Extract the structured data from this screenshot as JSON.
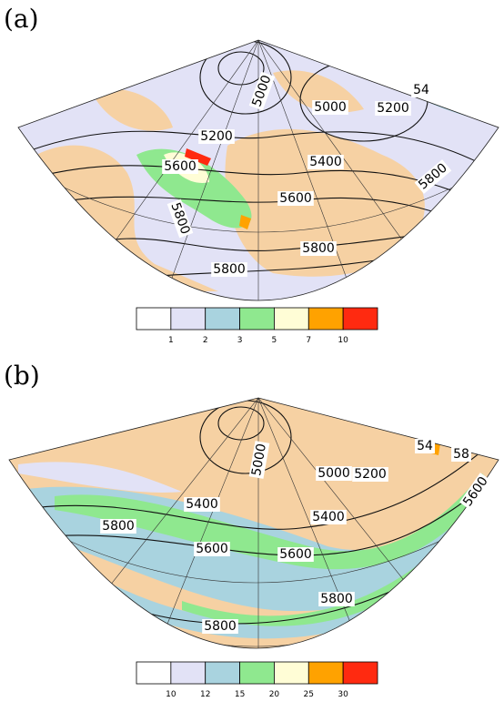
{
  "panels": [
    {
      "label": "(a)",
      "contour_labels": [
        "5000",
        "5000",
        "5200",
        "54",
        "5200",
        "5400",
        "5600",
        "5800",
        "5600",
        "5800",
        "5800",
        "5800"
      ],
      "colorbar": {
        "colors": [
          "#ffffff",
          "#e2e2f6",
          "#a9d3df",
          "#8fe88f",
          "#fffdd6",
          "#ffa200",
          "#ff2a10"
        ],
        "ticks": [
          1,
          2,
          3,
          5,
          7,
          10
        ]
      }
    },
    {
      "label": "(b)",
      "contour_labels": [
        "5000",
        "5000",
        "5200",
        "54",
        "58",
        "5400",
        "5400",
        "5600",
        "5800",
        "5600",
        "5600",
        "5800",
        "5800"
      ],
      "colorbar": {
        "colors": [
          "#ffffff",
          "#e2e2f6",
          "#a9d3df",
          "#8fe88f",
          "#fffdd6",
          "#ffa200",
          "#ff2a10"
        ],
        "ticks": [
          10,
          12,
          15,
          20,
          25,
          30
        ]
      }
    }
  ]
}
